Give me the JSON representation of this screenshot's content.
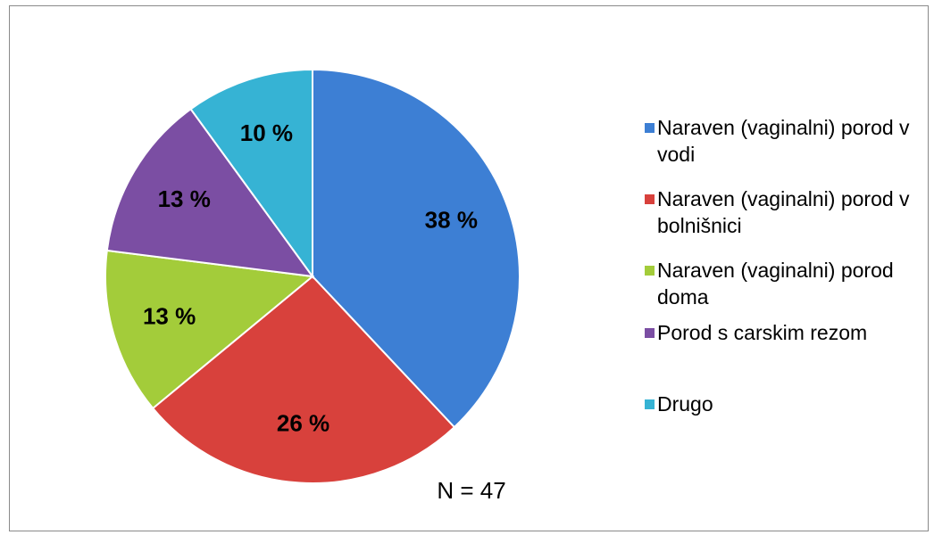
{
  "chart_data": {
    "type": "pie",
    "categories": [
      "Naraven (vaginalni) porod v vodi",
      "Naraven (vaginalni) porod v bolnišnici",
      "Naraven (vaginalni) porod doma",
      "Porod s carskim rezom",
      "Drugo"
    ],
    "values": [
      38,
      26,
      13,
      13,
      10
    ],
    "value_labels": [
      "38 %",
      "26 %",
      "13 %",
      "13 %",
      "10 %"
    ],
    "colors": [
      "#3d7fd4",
      "#d8413c",
      "#a3cc3a",
      "#7b4ea3",
      "#36b3d4"
    ],
    "annotation": "N = 47",
    "legend": "right"
  }
}
